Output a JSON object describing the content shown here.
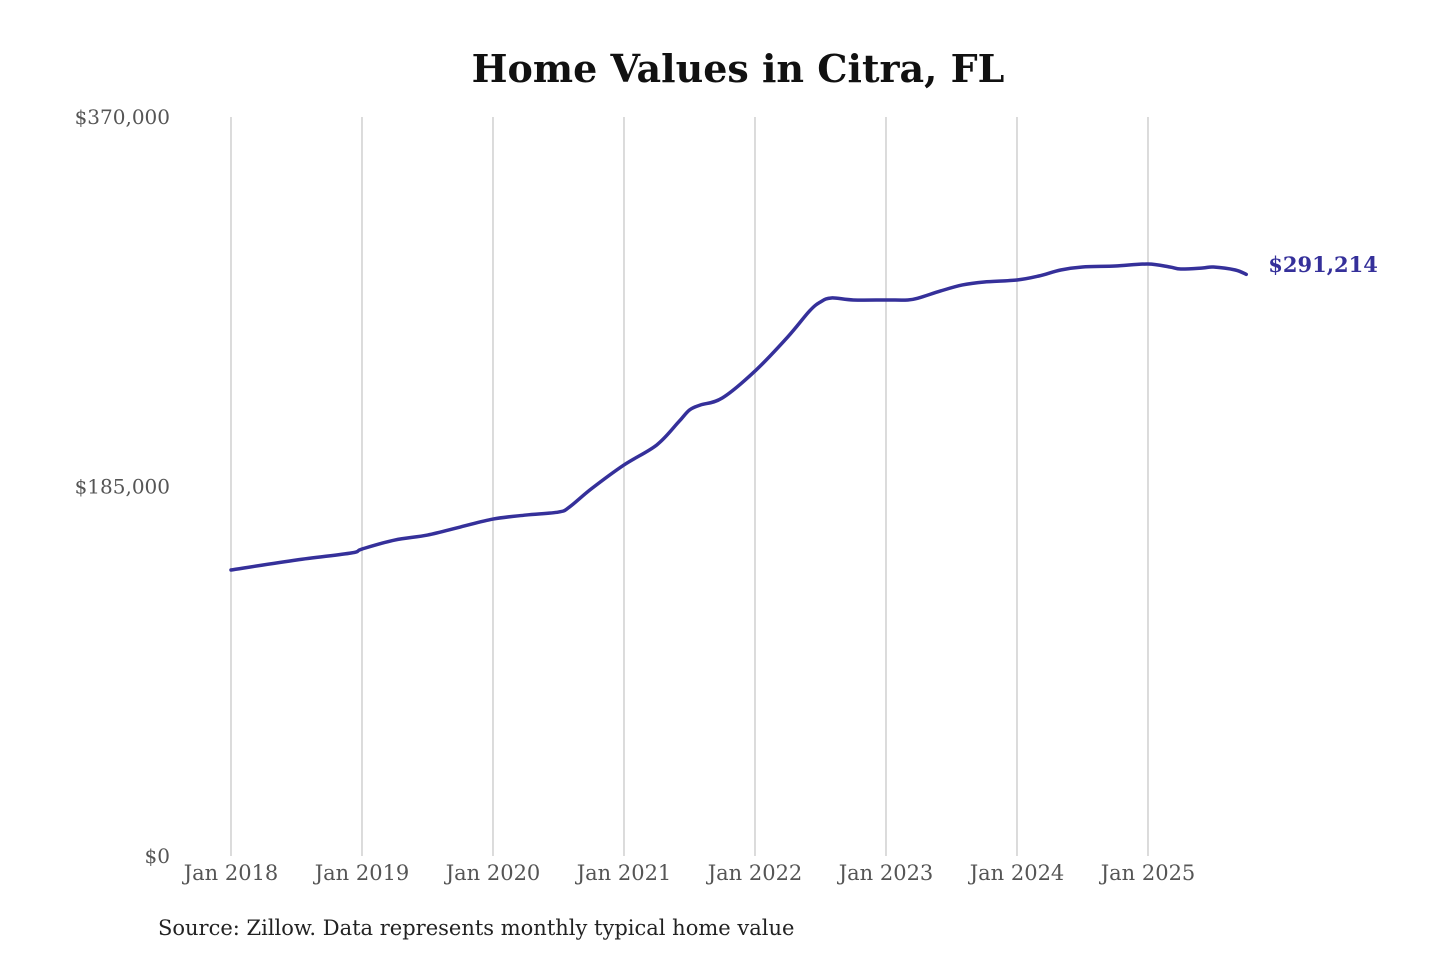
{
  "chart_data": {
    "type": "line",
    "title": "Home Values in Citra, FL",
    "source": "Source: Zillow. Data represents monthly typical home value",
    "xlabel": "",
    "ylabel": "",
    "ylim": [
      0,
      370000
    ],
    "y_ticks": [
      0,
      185000,
      370000
    ],
    "y_tick_labels": [
      "$0",
      "$185,000",
      "$370,000"
    ],
    "x_ticks": [
      "2018-01",
      "2019-01",
      "2020-01",
      "2021-01",
      "2022-01",
      "2023-01",
      "2024-01",
      "2025-01"
    ],
    "x_tick_labels": [
      "Jan 2018",
      "Jan 2019",
      "Jan 2020",
      "Jan 2021",
      "Jan 2022",
      "Jan 2023",
      "Jan 2024",
      "Jan 2025"
    ],
    "grid": "vertical",
    "line_color": "#35309a",
    "end_label": "$291,214",
    "series": [
      {
        "points": [
          [
            "2018-01",
            143200
          ],
          [
            "2018-07",
            148200
          ],
          [
            "2018-12",
            151700
          ],
          [
            "2019-01",
            153700
          ],
          [
            "2019-04",
            158200
          ],
          [
            "2019-07",
            160700
          ],
          [
            "2019-10",
            164700
          ],
          [
            "2020-01",
            168700
          ],
          [
            "2020-04",
            170700
          ],
          [
            "2020-07",
            172200
          ],
          [
            "2020-08",
            174700
          ],
          [
            "2020-10",
            183800
          ],
          [
            "2021-01",
            195800
          ],
          [
            "2021-04",
            205800
          ],
          [
            "2021-06",
            217300
          ],
          [
            "2021-07",
            223300
          ],
          [
            "2021-08",
            225800
          ],
          [
            "2021-10",
            229300
          ],
          [
            "2022-01",
            242800
          ],
          [
            "2022-04",
            259900
          ],
          [
            "2022-06",
            272900
          ],
          [
            "2022-07",
            277400
          ],
          [
            "2022-08",
            279400
          ],
          [
            "2022-10",
            278400
          ],
          [
            "2023-01",
            278400
          ],
          [
            "2023-03",
            278400
          ],
          [
            "2023-04",
            279400
          ],
          [
            "2023-06",
            282900
          ],
          [
            "2023-08",
            285900
          ],
          [
            "2023-10",
            287400
          ],
          [
            "2024-01",
            288400
          ],
          [
            "2024-03",
            290400
          ],
          [
            "2024-05",
            293400
          ],
          [
            "2024-07",
            294900
          ],
          [
            "2024-10",
            295400
          ],
          [
            "2025-01",
            296400
          ],
          [
            "2025-03",
            294900
          ],
          [
            "2025-04",
            293900
          ],
          [
            "2025-06",
            294400
          ],
          [
            "2025-07",
            294900
          ],
          [
            "2025-09",
            293400
          ],
          [
            "2025-10",
            291214
          ]
        ]
      }
    ]
  }
}
